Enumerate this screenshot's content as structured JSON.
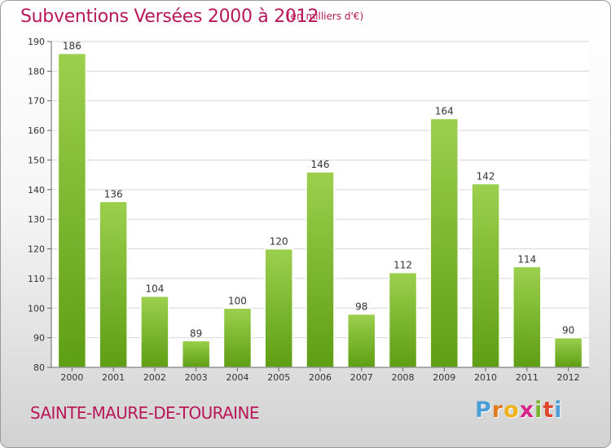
{
  "header": {
    "title": "Subventions Versées 2000 à 2012",
    "unit": "(en milliers d'€)"
  },
  "footer": {
    "town": "SAINTE-MAURE-DE-TOURAINE",
    "logo": "Proxiti"
  },
  "colors": {
    "title": "#b8185a",
    "bar_top": "#9bd04e",
    "bar_bottom": "#5e9e14",
    "grid": "#d7d7d7"
  },
  "chart_data": {
    "type": "bar",
    "title": "Subventions Versées 2000 à 2012",
    "xlabel": "",
    "ylabel": "",
    "ylim": [
      80,
      190
    ],
    "yticks": [
      80,
      90,
      100,
      110,
      120,
      130,
      140,
      150,
      160,
      170,
      180,
      190
    ],
    "grid": true,
    "categories": [
      "2000",
      "2001",
      "2002",
      "2003",
      "2004",
      "2005",
      "2006",
      "2007",
      "2008",
      "2009",
      "2010",
      "2011",
      "2012"
    ],
    "values": [
      186,
      136,
      104,
      89,
      100,
      120,
      146,
      98,
      112,
      164,
      142,
      114,
      90
    ]
  }
}
